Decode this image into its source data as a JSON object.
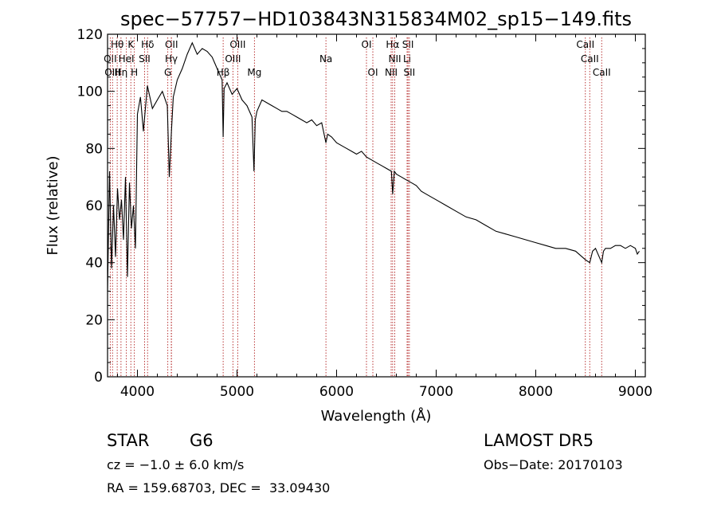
{
  "chart_data": {
    "type": "line",
    "title": "spec−57757−HD103843N315834M02_sp15−149.fits",
    "xlabel": "Wavelength (Å)",
    "ylabel": "Flux (relative)",
    "xlim": [
      3700,
      9100
    ],
    "ylim": [
      0,
      120
    ],
    "xticks": [
      4000,
      5000,
      6000,
      7000,
      8000,
      9000
    ],
    "yticks": [
      0,
      20,
      40,
      60,
      80,
      100,
      120
    ],
    "grid": false,
    "line_color": "#000000",
    "marker_color": "#b22222",
    "spectrum": {
      "x": [
        3700,
        3720,
        3740,
        3760,
        3780,
        3800,
        3820,
        3840,
        3860,
        3880,
        3900,
        3920,
        3940,
        3960,
        3980,
        4000,
        4030,
        4060,
        4100,
        4150,
        4200,
        4250,
        4300,
        4320,
        4340,
        4360,
        4400,
        4450,
        4500,
        4550,
        4600,
        4650,
        4700,
        4750,
        4800,
        4850,
        4861,
        4870,
        4900,
        4950,
        5000,
        5050,
        5100,
        5150,
        5170,
        5183,
        5200,
        5250,
        5300,
        5350,
        5400,
        5450,
        5500,
        5550,
        5600,
        5650,
        5700,
        5750,
        5800,
        5850,
        5893,
        5910,
        5950,
        6000,
        6050,
        6100,
        6150,
        6200,
        6250,
        6300,
        6350,
        6400,
        6450,
        6500,
        6550,
        6563,
        6580,
        6600,
        6650,
        6700,
        6750,
        6800,
        6850,
        6900,
        6950,
        7000,
        7100,
        7200,
        7300,
        7400,
        7500,
        7600,
        7700,
        7800,
        7900,
        8000,
        8100,
        8200,
        8300,
        8400,
        8498,
        8542,
        8570,
        8600,
        8662,
        8680,
        8700,
        8750,
        8800,
        8850,
        8900,
        8950,
        9000,
        9020,
        9040
      ],
      "y": [
        30,
        72,
        38,
        60,
        42,
        66,
        55,
        62,
        48,
        70,
        35,
        68,
        52,
        60,
        45,
        92,
        98,
        86,
        102,
        94,
        97,
        100,
        95,
        70,
        85,
        98,
        104,
        108,
        113,
        117,
        113,
        115,
        114,
        112,
        108,
        104,
        84,
        101,
        103,
        99,
        101,
        97,
        95,
        91,
        72,
        90,
        93,
        97,
        96,
        95,
        94,
        93,
        93,
        92,
        91,
        90,
        89,
        90,
        88,
        89,
        82,
        85,
        84,
        82,
        81,
        80,
        79,
        78,
        79,
        77,
        76,
        75,
        74,
        73,
        72,
        64,
        72,
        71,
        70,
        69,
        68,
        67,
        65,
        64,
        63,
        62,
        60,
        58,
        56,
        55,
        53,
        51,
        50,
        49,
        48,
        47,
        46,
        45,
        45,
        44,
        41,
        40,
        44,
        45,
        40,
        44,
        45,
        45,
        46,
        46,
        45,
        46,
        45,
        43,
        44
      ]
    },
    "line_markers": [
      {
        "label": "Hθ",
        "wavelength": 3797,
        "row": 0
      },
      {
        "label": "K",
        "wavelength": 3934,
        "row": 0
      },
      {
        "label": "Hδ",
        "wavelength": 4102,
        "row": 0
      },
      {
        "label": "OII",
        "wavelength": 4342,
        "row": 0
      },
      {
        "label": "OIII",
        "wavelength": 5007,
        "row": 0
      },
      {
        "label": "OI",
        "wavelength": 6300,
        "row": 0
      },
      {
        "label": "Hα",
        "wavelength": 6563,
        "row": 0
      },
      {
        "label": "SII",
        "wavelength": 6717,
        "row": 0
      },
      {
        "label": "CaII",
        "wavelength": 8498,
        "row": 0
      },
      {
        "label": "OII",
        "wavelength": 3727,
        "row": 1
      },
      {
        "label": "HeI",
        "wavelength": 3889,
        "row": 1
      },
      {
        "label": "SII",
        "wavelength": 4072,
        "row": 1
      },
      {
        "label": "Hγ",
        "wavelength": 4340,
        "row": 1
      },
      {
        "label": "OIII",
        "wavelength": 4959,
        "row": 1
      },
      {
        "label": "Na",
        "wavelength": 5893,
        "row": 1
      },
      {
        "label": "NII",
        "wavelength": 6584,
        "row": 1
      },
      {
        "label": "Li",
        "wavelength": 6708,
        "row": 1
      },
      {
        "label": "CaII",
        "wavelength": 8542,
        "row": 1
      },
      {
        "label": "OIII",
        "wavelength": 3750,
        "row": 2
      },
      {
        "label": "Hη",
        "wavelength": 3835,
        "row": 2
      },
      {
        "label": "H",
        "wavelength": 3969,
        "row": 2
      },
      {
        "label": "G",
        "wavelength": 4305,
        "row": 2
      },
      {
        "label": "Hβ",
        "wavelength": 4861,
        "row": 2
      },
      {
        "label": "Mg",
        "wavelength": 5175,
        "row": 2
      },
      {
        "label": "OI",
        "wavelength": 6364,
        "row": 2
      },
      {
        "label": "NII",
        "wavelength": 6548,
        "row": 2
      },
      {
        "label": "SII",
        "wavelength": 6731,
        "row": 2
      },
      {
        "label": "CaII",
        "wavelength": 8662,
        "row": 2
      }
    ]
  },
  "footer": {
    "class_label": "STAR",
    "subclass": "G6",
    "survey": "LAMOST DR5",
    "cz_text": "cz = −1.0 ± 6.0 km/s",
    "obs_date": "Obs−Date: 20170103",
    "coords": "RA = 159.68703, DEC =  33.09430"
  }
}
